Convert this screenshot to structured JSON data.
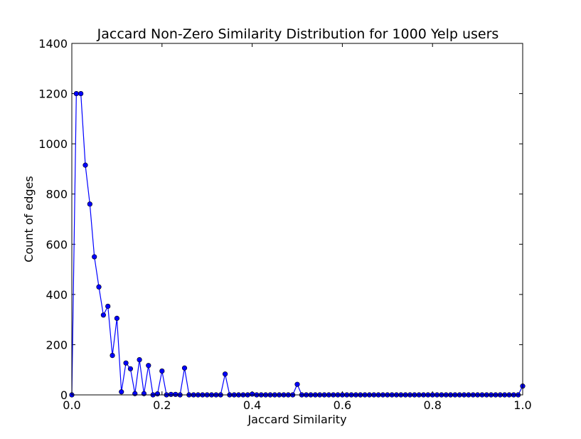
{
  "chart_data": {
    "type": "line",
    "title": "Jaccard Non-Zero Similarity Distribution for 1000 Yelp users",
    "xlabel": "Jaccard Similarity",
    "ylabel": "Count of edges",
    "xlim": [
      0,
      1
    ],
    "ylim": [
      0,
      1400
    ],
    "xticks": [
      "0.0",
      "0.2",
      "0.4",
      "0.6",
      "0.8",
      "1.0"
    ],
    "yticks": [
      "0",
      "200",
      "400",
      "600",
      "800",
      "1000",
      "1200",
      "1400"
    ],
    "grid": false,
    "legend": "none",
    "line_color": "#0000ff",
    "marker_color": "#0000ff",
    "series": [
      {
        "x": [
          0.0,
          0.01,
          0.02,
          0.03,
          0.04,
          0.05,
          0.06,
          0.07,
          0.08,
          0.09,
          0.1,
          0.11,
          0.12,
          0.13,
          0.14,
          0.15,
          0.16,
          0.17,
          0.18,
          0.19,
          0.2,
          0.21,
          0.22,
          0.23,
          0.24,
          0.25,
          0.26,
          0.27,
          0.28,
          0.29,
          0.3,
          0.31,
          0.32,
          0.33,
          0.34,
          0.35,
          0.36,
          0.37,
          0.38,
          0.39,
          0.4,
          0.41,
          0.42,
          0.43,
          0.44,
          0.45,
          0.46,
          0.47,
          0.48,
          0.49,
          0.5,
          0.51,
          0.52,
          0.53,
          0.54,
          0.55,
          0.56,
          0.57,
          0.58,
          0.59,
          0.6,
          0.61,
          0.62,
          0.63,
          0.64,
          0.65,
          0.66,
          0.67,
          0.68,
          0.69,
          0.7,
          0.71,
          0.72,
          0.73,
          0.74,
          0.75,
          0.76,
          0.77,
          0.78,
          0.79,
          0.8,
          0.81,
          0.82,
          0.83,
          0.84,
          0.85,
          0.86,
          0.87,
          0.88,
          0.89,
          0.9,
          0.91,
          0.92,
          0.93,
          0.94,
          0.95,
          0.96,
          0.97,
          0.98,
          0.99,
          1.0
        ],
        "y": [
          0,
          1200,
          1200,
          915,
          760,
          550,
          430,
          318,
          353,
          157,
          305,
          12,
          127,
          104,
          5,
          140,
          5,
          117,
          0,
          4,
          95,
          0,
          2,
          2,
          0,
          107,
          0,
          0,
          0,
          0,
          0,
          0,
          0,
          0,
          83,
          0,
          0,
          0,
          0,
          0,
          3,
          0,
          0,
          0,
          0,
          0,
          0,
          0,
          0,
          0,
          42,
          0,
          0,
          0,
          0,
          0,
          0,
          0,
          0,
          0,
          0,
          0,
          0,
          0,
          0,
          0,
          0,
          0,
          0,
          0,
          0,
          0,
          0,
          0,
          0,
          0,
          0,
          0,
          0,
          0,
          0,
          0,
          0,
          0,
          0,
          0,
          0,
          0,
          0,
          0,
          0,
          0,
          0,
          0,
          0,
          0,
          0,
          0,
          0,
          0,
          35
        ]
      }
    ]
  }
}
